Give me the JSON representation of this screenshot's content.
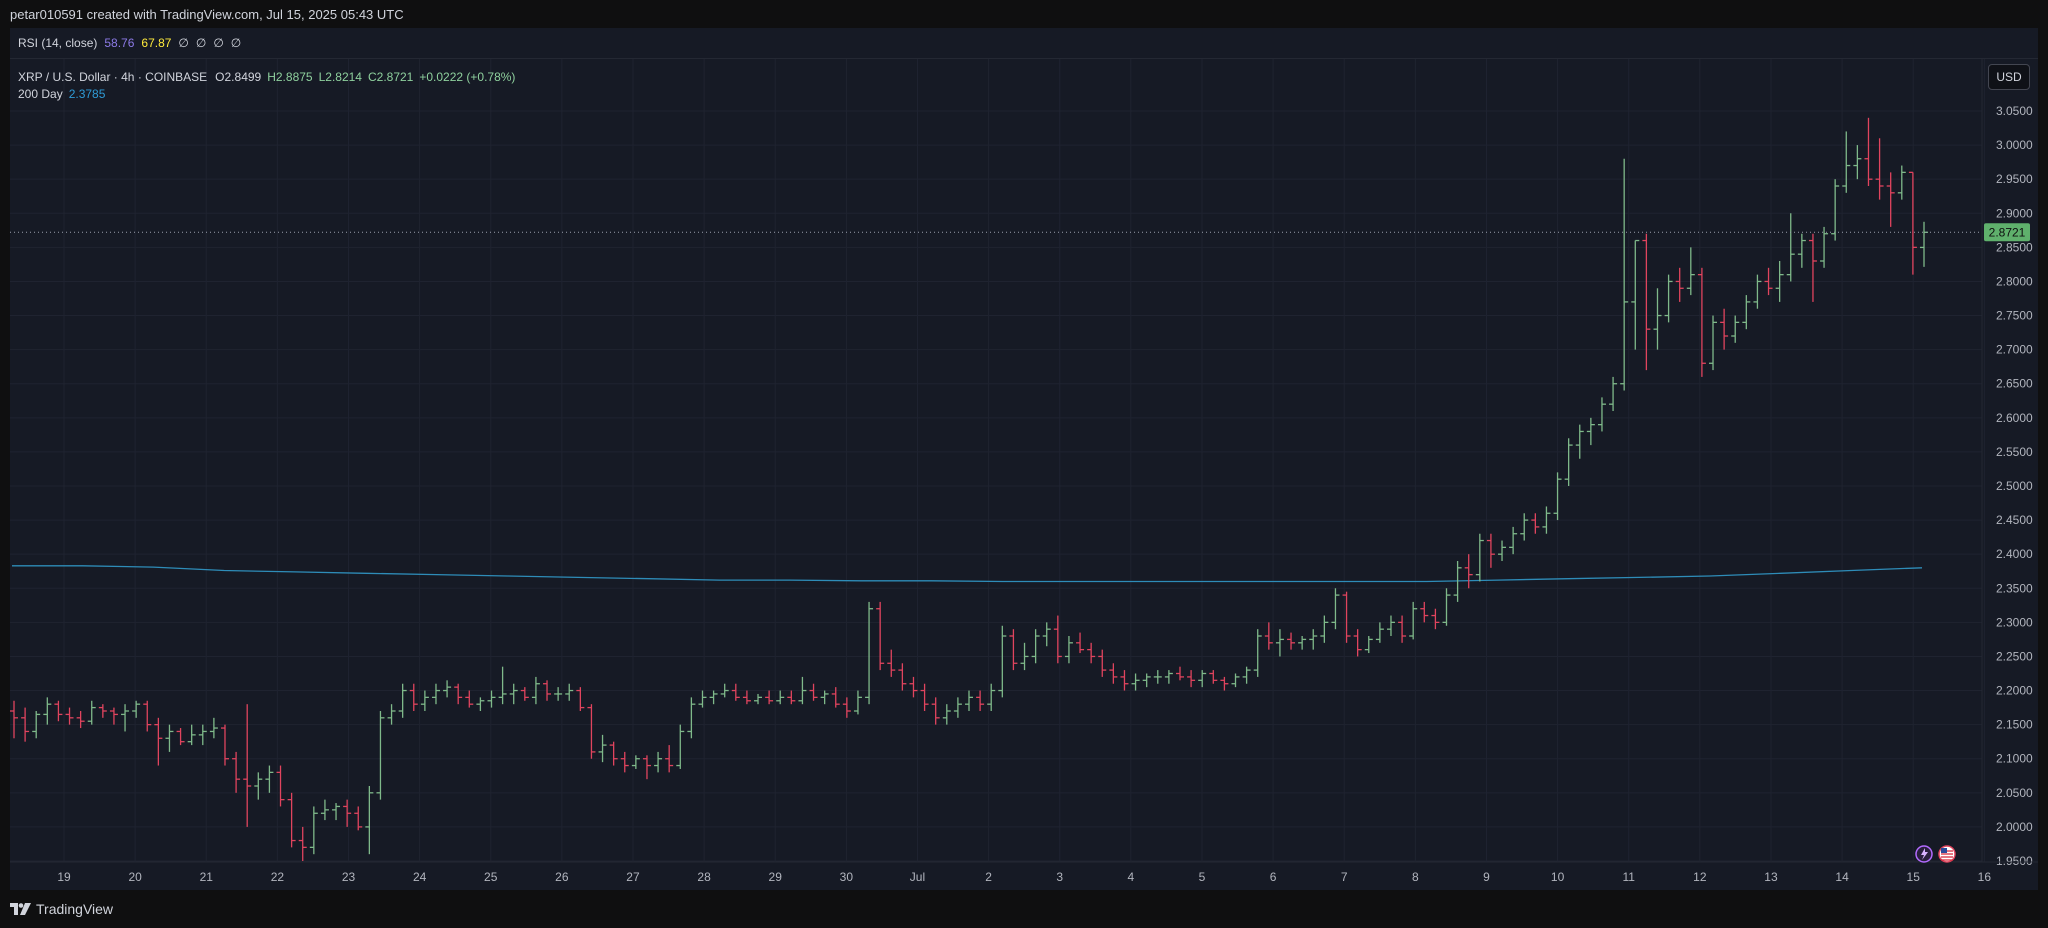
{
  "header": {
    "attribution": "petar010591 created with TradingView.com, Jul 15, 2025 05:43 UTC"
  },
  "rsi": {
    "label": "RSI (14, close)",
    "value1": "58.76",
    "value2": "67.87",
    "placeholders": [
      "∅",
      "∅",
      "∅",
      "∅"
    ],
    "colors": {
      "value1": "#7e57c2",
      "value2": "#ffeb3b"
    }
  },
  "legend": {
    "symbol": "XRP / U.S. Dollar · 4h · COINBASE",
    "open": "O2.8499",
    "high": "H2.8875",
    "low": "L2.8214",
    "close": "C2.8721",
    "change": "+0.0222 (+0.78%)",
    "ma_label": "200 Day",
    "ma_value": "2.3785"
  },
  "currency_button": "USD",
  "footer": {
    "brand": "TradingView"
  },
  "icons": [
    "tradingview-logo-icon",
    "lightning-icon",
    "us-flag-icon"
  ],
  "colors": {
    "up": "#7fb98a",
    "down": "#e0445e",
    "ma": "#2e8cb8",
    "price_tag": "#5fb06c",
    "background": "#161a25",
    "grid": "#1f2330"
  },
  "chart_data": {
    "type": "ohlc",
    "title": "XRP / U.S. Dollar · 4h · COINBASE",
    "ylim": [
      1.95,
      3.05
    ],
    "y_ticks": [
      "3.0500",
      "3.0000",
      "2.9500",
      "2.9000",
      "2.8500",
      "2.8000",
      "2.7500",
      "2.7000",
      "2.6500",
      "2.6000",
      "2.5500",
      "2.5000",
      "2.4500",
      "2.4000",
      "2.3500",
      "2.3000",
      "2.2500",
      "2.2000",
      "2.1500",
      "2.1000",
      "2.0500",
      "2.0000",
      "1.9500"
    ],
    "x_ticks": [
      "19",
      "20",
      "21",
      "22",
      "23",
      "24",
      "25",
      "26",
      "27",
      "28",
      "29",
      "30",
      "Jul",
      "2",
      "3",
      "4",
      "5",
      "6",
      "7",
      "8",
      "9",
      "10",
      "11",
      "12",
      "13",
      "14",
      "15",
      "16"
    ],
    "last_price": "2.8721",
    "ma_200": [
      2.383,
      2.383,
      2.381,
      2.376,
      2.374,
      2.372,
      2.37,
      2.368,
      2.366,
      2.364,
      2.362,
      2.362,
      2.361,
      2.361,
      2.36,
      2.36,
      2.36,
      2.36,
      2.36,
      2.36,
      2.36,
      2.362,
      2.364,
      2.366,
      2.368,
      2.372,
      2.376,
      2.38
    ],
    "series": [
      {
        "o": 2.17,
        "h": 2.185,
        "l": 2.13,
        "c": 2.16
      },
      {
        "o": 2.16,
        "h": 2.175,
        "l": 2.125,
        "c": 2.14
      },
      {
        "o": 2.14,
        "h": 2.17,
        "l": 2.13,
        "c": 2.165
      },
      {
        "o": 2.165,
        "h": 2.19,
        "l": 2.15,
        "c": 2.18
      },
      {
        "o": 2.18,
        "h": 2.185,
        "l": 2.155,
        "c": 2.165
      },
      {
        "o": 2.165,
        "h": 2.175,
        "l": 2.15,
        "c": 2.16
      },
      {
        "o": 2.16,
        "h": 2.17,
        "l": 2.145,
        "c": 2.155
      },
      {
        "o": 2.155,
        "h": 2.185,
        "l": 2.15,
        "c": 2.175
      },
      {
        "o": 2.175,
        "h": 2.18,
        "l": 2.16,
        "c": 2.17
      },
      {
        "o": 2.17,
        "h": 2.175,
        "l": 2.15,
        "c": 2.165
      },
      {
        "o": 2.165,
        "h": 2.18,
        "l": 2.14,
        "c": 2.17
      },
      {
        "o": 2.17,
        "h": 2.185,
        "l": 2.16,
        "c": 2.18
      },
      {
        "o": 2.18,
        "h": 2.185,
        "l": 2.14,
        "c": 2.15
      },
      {
        "o": 2.15,
        "h": 2.16,
        "l": 2.09,
        "c": 2.13
      },
      {
        "o": 2.13,
        "h": 2.15,
        "l": 2.11,
        "c": 2.14
      },
      {
        "o": 2.14,
        "h": 2.145,
        "l": 2.12,
        "c": 2.125
      },
      {
        "o": 2.125,
        "h": 2.15,
        "l": 2.12,
        "c": 2.135
      },
      {
        "o": 2.135,
        "h": 2.15,
        "l": 2.12,
        "c": 2.14
      },
      {
        "o": 2.14,
        "h": 2.16,
        "l": 2.13,
        "c": 2.145
      },
      {
        "o": 2.145,
        "h": 2.15,
        "l": 2.09,
        "c": 2.1
      },
      {
        "o": 2.1,
        "h": 2.11,
        "l": 2.05,
        "c": 2.07
      },
      {
        "o": 2.07,
        "h": 2.18,
        "l": 2.0,
        "c": 2.06
      },
      {
        "o": 2.06,
        "h": 2.08,
        "l": 2.04,
        "c": 2.07
      },
      {
        "o": 2.07,
        "h": 2.09,
        "l": 2.05,
        "c": 2.08
      },
      {
        "o": 2.08,
        "h": 2.09,
        "l": 2.03,
        "c": 2.04
      },
      {
        "o": 2.04,
        "h": 2.05,
        "l": 1.97,
        "c": 1.98
      },
      {
        "o": 1.98,
        "h": 2.0,
        "l": 1.95,
        "c": 1.97
      },
      {
        "o": 1.97,
        "h": 2.03,
        "l": 1.96,
        "c": 2.02
      },
      {
        "o": 2.02,
        "h": 2.04,
        "l": 2.01,
        "c": 2.025
      },
      {
        "o": 2.025,
        "h": 2.035,
        "l": 2.01,
        "c": 2.03
      },
      {
        "o": 2.03,
        "h": 2.04,
        "l": 2.0,
        "c": 2.02
      },
      {
        "o": 2.02,
        "h": 2.03,
        "l": 1.995,
        "c": 2.0
      },
      {
        "o": 2.0,
        "h": 2.06,
        "l": 1.96,
        "c": 2.05
      },
      {
        "o": 2.05,
        "h": 2.17,
        "l": 2.04,
        "c": 2.16
      },
      {
        "o": 2.16,
        "h": 2.18,
        "l": 2.15,
        "c": 2.17
      },
      {
        "o": 2.17,
        "h": 2.21,
        "l": 2.16,
        "c": 2.2
      },
      {
        "o": 2.2,
        "h": 2.21,
        "l": 2.17,
        "c": 2.18
      },
      {
        "o": 2.18,
        "h": 2.2,
        "l": 2.17,
        "c": 2.19
      },
      {
        "o": 2.19,
        "h": 2.21,
        "l": 2.18,
        "c": 2.2
      },
      {
        "o": 2.2,
        "h": 2.215,
        "l": 2.19,
        "c": 2.205
      },
      {
        "o": 2.205,
        "h": 2.21,
        "l": 2.18,
        "c": 2.19
      },
      {
        "o": 2.19,
        "h": 2.2,
        "l": 2.175,
        "c": 2.18
      },
      {
        "o": 2.18,
        "h": 2.19,
        "l": 2.17,
        "c": 2.185
      },
      {
        "o": 2.185,
        "h": 2.2,
        "l": 2.175,
        "c": 2.19
      },
      {
        "o": 2.19,
        "h": 2.235,
        "l": 2.18,
        "c": 2.195
      },
      {
        "o": 2.195,
        "h": 2.21,
        "l": 2.18,
        "c": 2.2
      },
      {
        "o": 2.2,
        "h": 2.205,
        "l": 2.185,
        "c": 2.19
      },
      {
        "o": 2.19,
        "h": 2.22,
        "l": 2.18,
        "c": 2.21
      },
      {
        "o": 2.21,
        "h": 2.215,
        "l": 2.185,
        "c": 2.195
      },
      {
        "o": 2.195,
        "h": 2.205,
        "l": 2.185,
        "c": 2.195
      },
      {
        "o": 2.195,
        "h": 2.21,
        "l": 2.185,
        "c": 2.2
      },
      {
        "o": 2.2,
        "h": 2.205,
        "l": 2.17,
        "c": 2.175
      },
      {
        "o": 2.175,
        "h": 2.18,
        "l": 2.1,
        "c": 2.11
      },
      {
        "o": 2.11,
        "h": 2.135,
        "l": 2.095,
        "c": 2.12
      },
      {
        "o": 2.12,
        "h": 2.125,
        "l": 2.09,
        "c": 2.1
      },
      {
        "o": 2.1,
        "h": 2.11,
        "l": 2.08,
        "c": 2.09
      },
      {
        "o": 2.09,
        "h": 2.105,
        "l": 2.085,
        "c": 2.1
      },
      {
        "o": 2.1,
        "h": 2.105,
        "l": 2.07,
        "c": 2.09
      },
      {
        "o": 2.09,
        "h": 2.11,
        "l": 2.08,
        "c": 2.1
      },
      {
        "o": 2.1,
        "h": 2.12,
        "l": 2.08,
        "c": 2.09
      },
      {
        "o": 2.09,
        "h": 2.15,
        "l": 2.085,
        "c": 2.14
      },
      {
        "o": 2.14,
        "h": 2.19,
        "l": 2.13,
        "c": 2.18
      },
      {
        "o": 2.18,
        "h": 2.2,
        "l": 2.175,
        "c": 2.19
      },
      {
        "o": 2.19,
        "h": 2.2,
        "l": 2.18,
        "c": 2.195
      },
      {
        "o": 2.195,
        "h": 2.21,
        "l": 2.19,
        "c": 2.2
      },
      {
        "o": 2.2,
        "h": 2.21,
        "l": 2.185,
        "c": 2.19
      },
      {
        "o": 2.19,
        "h": 2.2,
        "l": 2.18,
        "c": 2.185
      },
      {
        "o": 2.185,
        "h": 2.195,
        "l": 2.18,
        "c": 2.19
      },
      {
        "o": 2.19,
        "h": 2.2,
        "l": 2.18,
        "c": 2.185
      },
      {
        "o": 2.185,
        "h": 2.2,
        "l": 2.18,
        "c": 2.19
      },
      {
        "o": 2.19,
        "h": 2.2,
        "l": 2.18,
        "c": 2.185
      },
      {
        "o": 2.185,
        "h": 2.22,
        "l": 2.18,
        "c": 2.2
      },
      {
        "o": 2.2,
        "h": 2.21,
        "l": 2.185,
        "c": 2.19
      },
      {
        "o": 2.19,
        "h": 2.2,
        "l": 2.18,
        "c": 2.195
      },
      {
        "o": 2.195,
        "h": 2.205,
        "l": 2.175,
        "c": 2.18
      },
      {
        "o": 2.18,
        "h": 2.19,
        "l": 2.16,
        "c": 2.17
      },
      {
        "o": 2.17,
        "h": 2.2,
        "l": 2.165,
        "c": 2.19
      },
      {
        "o": 2.19,
        "h": 2.33,
        "l": 2.18,
        "c": 2.32
      },
      {
        "o": 2.32,
        "h": 2.33,
        "l": 2.23,
        "c": 2.24
      },
      {
        "o": 2.24,
        "h": 2.26,
        "l": 2.22,
        "c": 2.23
      },
      {
        "o": 2.23,
        "h": 2.24,
        "l": 2.2,
        "c": 2.21
      },
      {
        "o": 2.21,
        "h": 2.22,
        "l": 2.19,
        "c": 2.2
      },
      {
        "o": 2.2,
        "h": 2.21,
        "l": 2.17,
        "c": 2.18
      },
      {
        "o": 2.18,
        "h": 2.19,
        "l": 2.15,
        "c": 2.16
      },
      {
        "o": 2.16,
        "h": 2.18,
        "l": 2.15,
        "c": 2.17
      },
      {
        "o": 2.17,
        "h": 2.19,
        "l": 2.16,
        "c": 2.18
      },
      {
        "o": 2.18,
        "h": 2.2,
        "l": 2.17,
        "c": 2.19
      },
      {
        "o": 2.19,
        "h": 2.2,
        "l": 2.17,
        "c": 2.18
      },
      {
        "o": 2.18,
        "h": 2.21,
        "l": 2.17,
        "c": 2.2
      },
      {
        "o": 2.2,
        "h": 2.295,
        "l": 2.19,
        "c": 2.28
      },
      {
        "o": 2.28,
        "h": 2.29,
        "l": 2.23,
        "c": 2.24
      },
      {
        "o": 2.24,
        "h": 2.27,
        "l": 2.23,
        "c": 2.25
      },
      {
        "o": 2.25,
        "h": 2.29,
        "l": 2.24,
        "c": 2.28
      },
      {
        "o": 2.28,
        "h": 2.3,
        "l": 2.265,
        "c": 2.29
      },
      {
        "o": 2.29,
        "h": 2.31,
        "l": 2.24,
        "c": 2.25
      },
      {
        "o": 2.25,
        "h": 2.28,
        "l": 2.24,
        "c": 2.27
      },
      {
        "o": 2.27,
        "h": 2.285,
        "l": 2.255,
        "c": 2.26
      },
      {
        "o": 2.26,
        "h": 2.27,
        "l": 2.24,
        "c": 2.25
      },
      {
        "o": 2.25,
        "h": 2.26,
        "l": 2.22,
        "c": 2.23
      },
      {
        "o": 2.23,
        "h": 2.24,
        "l": 2.21,
        "c": 2.22
      },
      {
        "o": 2.22,
        "h": 2.23,
        "l": 2.2,
        "c": 2.21
      },
      {
        "o": 2.21,
        "h": 2.225,
        "l": 2.2,
        "c": 2.215
      },
      {
        "o": 2.215,
        "h": 2.225,
        "l": 2.205,
        "c": 2.22
      },
      {
        "o": 2.22,
        "h": 2.23,
        "l": 2.21,
        "c": 2.22
      },
      {
        "o": 2.22,
        "h": 2.23,
        "l": 2.21,
        "c": 2.225
      },
      {
        "o": 2.225,
        "h": 2.235,
        "l": 2.215,
        "c": 2.22
      },
      {
        "o": 2.22,
        "h": 2.23,
        "l": 2.205,
        "c": 2.215
      },
      {
        "o": 2.215,
        "h": 2.23,
        "l": 2.205,
        "c": 2.225
      },
      {
        "o": 2.225,
        "h": 2.23,
        "l": 2.21,
        "c": 2.215
      },
      {
        "o": 2.215,
        "h": 2.22,
        "l": 2.2,
        "c": 2.21
      },
      {
        "o": 2.21,
        "h": 2.225,
        "l": 2.205,
        "c": 2.22
      },
      {
        "o": 2.22,
        "h": 2.235,
        "l": 2.21,
        "c": 2.23
      },
      {
        "o": 2.23,
        "h": 2.29,
        "l": 2.22,
        "c": 2.28
      },
      {
        "o": 2.28,
        "h": 2.3,
        "l": 2.26,
        "c": 2.27
      },
      {
        "o": 2.27,
        "h": 2.29,
        "l": 2.25,
        "c": 2.275
      },
      {
        "o": 2.275,
        "h": 2.285,
        "l": 2.26,
        "c": 2.27
      },
      {
        "o": 2.27,
        "h": 2.28,
        "l": 2.26,
        "c": 2.275
      },
      {
        "o": 2.275,
        "h": 2.29,
        "l": 2.26,
        "c": 2.28
      },
      {
        "o": 2.28,
        "h": 2.31,
        "l": 2.27,
        "c": 2.3
      },
      {
        "o": 2.3,
        "h": 2.35,
        "l": 2.29,
        "c": 2.34
      },
      {
        "o": 2.34,
        "h": 2.345,
        "l": 2.27,
        "c": 2.28
      },
      {
        "o": 2.28,
        "h": 2.29,
        "l": 2.25,
        "c": 2.26
      },
      {
        "o": 2.26,
        "h": 2.28,
        "l": 2.255,
        "c": 2.275
      },
      {
        "o": 2.275,
        "h": 2.3,
        "l": 2.27,
        "c": 2.29
      },
      {
        "o": 2.29,
        "h": 2.31,
        "l": 2.28,
        "c": 2.3
      },
      {
        "o": 2.3,
        "h": 2.31,
        "l": 2.27,
        "c": 2.28
      },
      {
        "o": 2.28,
        "h": 2.33,
        "l": 2.275,
        "c": 2.32
      },
      {
        "o": 2.32,
        "h": 2.33,
        "l": 2.3,
        "c": 2.31
      },
      {
        "o": 2.31,
        "h": 2.32,
        "l": 2.29,
        "c": 2.3
      },
      {
        "o": 2.3,
        "h": 2.35,
        "l": 2.295,
        "c": 2.34
      },
      {
        "o": 2.34,
        "h": 2.39,
        "l": 2.33,
        "c": 2.38
      },
      {
        "o": 2.38,
        "h": 2.4,
        "l": 2.35,
        "c": 2.37
      },
      {
        "o": 2.37,
        "h": 2.43,
        "l": 2.36,
        "c": 2.42
      },
      {
        "o": 2.42,
        "h": 2.43,
        "l": 2.38,
        "c": 2.4
      },
      {
        "o": 2.4,
        "h": 2.42,
        "l": 2.39,
        "c": 2.41
      },
      {
        "o": 2.41,
        "h": 2.44,
        "l": 2.4,
        "c": 2.43
      },
      {
        "o": 2.43,
        "h": 2.46,
        "l": 2.42,
        "c": 2.45
      },
      {
        "o": 2.45,
        "h": 2.46,
        "l": 2.43,
        "c": 2.44
      },
      {
        "o": 2.44,
        "h": 2.47,
        "l": 2.43,
        "c": 2.46
      },
      {
        "o": 2.46,
        "h": 2.52,
        "l": 2.45,
        "c": 2.51
      },
      {
        "o": 2.51,
        "h": 2.57,
        "l": 2.5,
        "c": 2.56
      },
      {
        "o": 2.56,
        "h": 2.59,
        "l": 2.54,
        "c": 2.58
      },
      {
        "o": 2.58,
        "h": 2.6,
        "l": 2.56,
        "c": 2.59
      },
      {
        "o": 2.59,
        "h": 2.63,
        "l": 2.58,
        "c": 2.62
      },
      {
        "o": 2.62,
        "h": 2.66,
        "l": 2.61,
        "c": 2.65
      },
      {
        "o": 2.65,
        "h": 2.98,
        "l": 2.64,
        "c": 2.77
      },
      {
        "o": 2.77,
        "h": 2.86,
        "l": 2.7,
        "c": 2.86
      },
      {
        "o": 2.86,
        "h": 2.87,
        "l": 2.67,
        "c": 2.73
      },
      {
        "o": 2.73,
        "h": 2.79,
        "l": 2.7,
        "c": 2.75
      },
      {
        "o": 2.75,
        "h": 2.81,
        "l": 2.74,
        "c": 2.8
      },
      {
        "o": 2.8,
        "h": 2.82,
        "l": 2.77,
        "c": 2.79
      },
      {
        "o": 2.79,
        "h": 2.85,
        "l": 2.78,
        "c": 2.81
      },
      {
        "o": 2.81,
        "h": 2.82,
        "l": 2.66,
        "c": 2.68
      },
      {
        "o": 2.68,
        "h": 2.75,
        "l": 2.67,
        "c": 2.74
      },
      {
        "o": 2.74,
        "h": 2.76,
        "l": 2.7,
        "c": 2.72
      },
      {
        "o": 2.72,
        "h": 2.75,
        "l": 2.71,
        "c": 2.74
      },
      {
        "o": 2.74,
        "h": 2.78,
        "l": 2.73,
        "c": 2.77
      },
      {
        "o": 2.77,
        "h": 2.81,
        "l": 2.76,
        "c": 2.8
      },
      {
        "o": 2.8,
        "h": 2.82,
        "l": 2.78,
        "c": 2.79
      },
      {
        "o": 2.79,
        "h": 2.83,
        "l": 2.77,
        "c": 2.81
      },
      {
        "o": 2.81,
        "h": 2.9,
        "l": 2.8,
        "c": 2.84
      },
      {
        "o": 2.84,
        "h": 2.87,
        "l": 2.82,
        "c": 2.86
      },
      {
        "o": 2.86,
        "h": 2.87,
        "l": 2.77,
        "c": 2.83
      },
      {
        "o": 2.83,
        "h": 2.88,
        "l": 2.82,
        "c": 2.87
      },
      {
        "o": 2.87,
        "h": 2.95,
        "l": 2.86,
        "c": 2.94
      },
      {
        "o": 2.94,
        "h": 3.02,
        "l": 2.93,
        "c": 2.97
      },
      {
        "o": 2.97,
        "h": 3.0,
        "l": 2.95,
        "c": 2.98
      },
      {
        "o": 2.98,
        "h": 3.04,
        "l": 2.94,
        "c": 2.95
      },
      {
        "o": 2.95,
        "h": 3.01,
        "l": 2.92,
        "c": 2.94
      },
      {
        "o": 2.94,
        "h": 2.96,
        "l": 2.88,
        "c": 2.93
      },
      {
        "o": 2.93,
        "h": 2.97,
        "l": 2.92,
        "c": 2.96
      },
      {
        "o": 2.96,
        "h": 2.96,
        "l": 2.81,
        "c": 2.85
      },
      {
        "o": 2.8499,
        "h": 2.8875,
        "l": 2.8214,
        "c": 2.8721
      }
    ]
  }
}
